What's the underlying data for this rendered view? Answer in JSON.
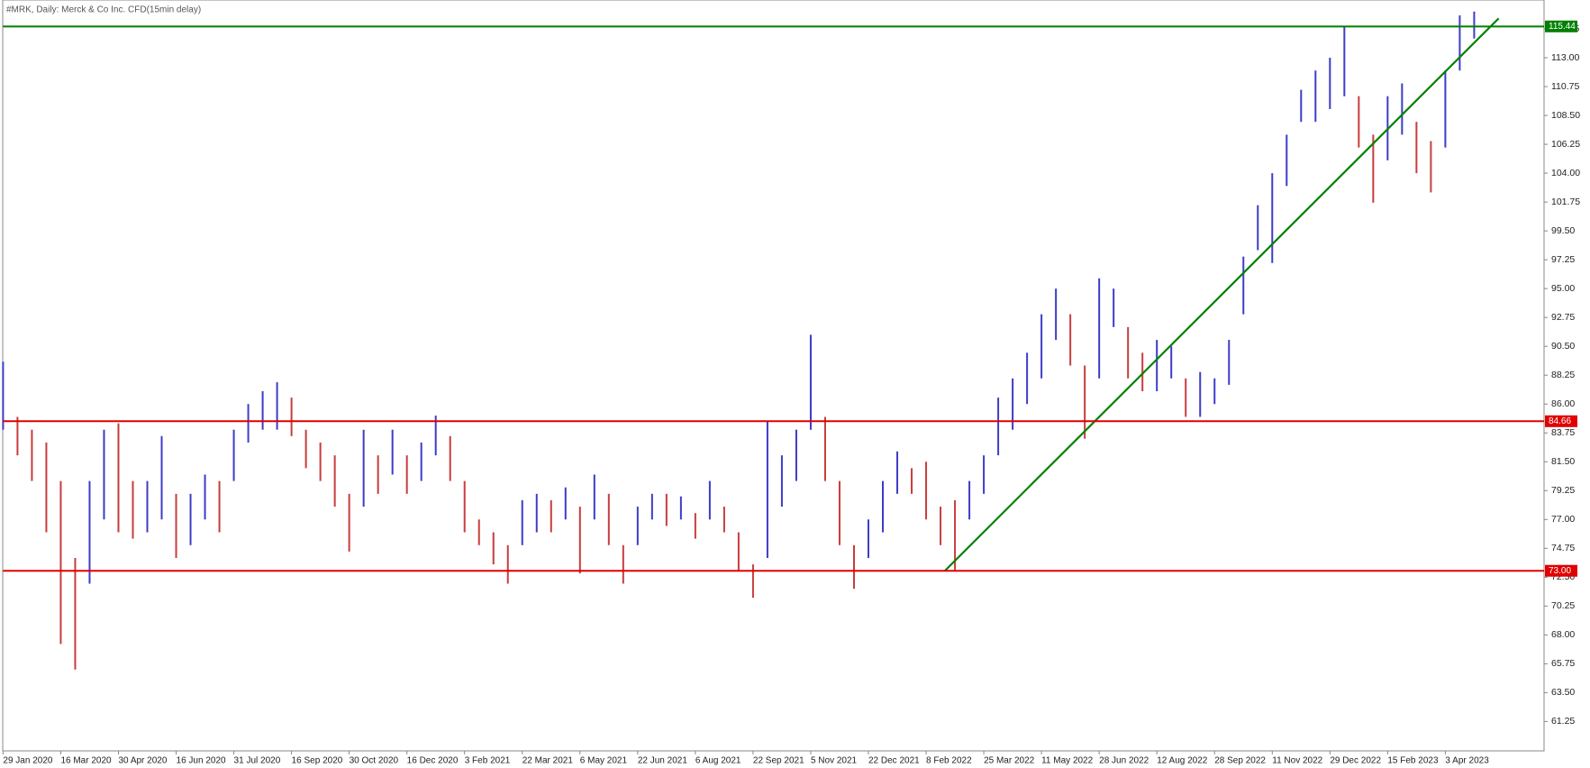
{
  "chart_data": {
    "type": "hilo",
    "title": "#MRK, Daily:  Merck & Co Inc. CFD(15min delay)",
    "categories": [
      "29 Jan 2020",
      null,
      null,
      null,
      "16 Mar 2020",
      null,
      null,
      null,
      "30 Apr 2020",
      null,
      null,
      null,
      "16 Jun 2020",
      null,
      null,
      null,
      "31 Jul 2020",
      null,
      null,
      null,
      "16 Sep 2020",
      null,
      null,
      null,
      "30 Oct 2020",
      null,
      null,
      null,
      "16 Dec 2020",
      null,
      null,
      null,
      "3 Feb 2021",
      null,
      null,
      null,
      "22 Mar 2021",
      null,
      null,
      null,
      "6 May 2021",
      null,
      null,
      null,
      "22 Jun 2021",
      null,
      null,
      null,
      "6 Aug 2021",
      null,
      null,
      null,
      "22 Sep 2021",
      null,
      null,
      null,
      "5 Nov 2021",
      null,
      null,
      null,
      "22 Dec 2021",
      null,
      null,
      null,
      "8 Feb 2022",
      null,
      null,
      null,
      "25 Mar 2022",
      null,
      null,
      null,
      "11 May 2022",
      null,
      null,
      null,
      "28 Jun 2022",
      null,
      null,
      null,
      "12 Aug 2022",
      null,
      null,
      null,
      "28 Sep 2022",
      null,
      null,
      null,
      "11 Nov 2022",
      null,
      null,
      null,
      "29 Dec 2022",
      null,
      null,
      null,
      "15 Feb 2023",
      null,
      null,
      null,
      "3 Apr 2023",
      null,
      null
    ],
    "high": [
      89.3,
      85,
      84,
      83,
      80,
      74,
      80,
      84,
      84.5,
      80,
      80,
      83.5,
      79,
      79,
      80.5,
      80,
      84,
      86,
      87,
      87.7,
      86.5,
      84,
      83,
      82,
      79,
      84,
      82,
      84,
      82,
      83,
      85.1,
      83.5,
      80,
      77,
      76,
      75,
      78.5,
      79,
      78.5,
      79.5,
      78,
      80.5,
      79,
      75,
      78,
      79,
      79,
      78.8,
      77.5,
      80,
      78,
      76,
      73.5,
      84.7,
      82,
      84,
      91.4,
      85,
      80,
      75,
      77,
      80,
      82.3,
      81,
      81.5,
      78,
      78.5,
      80,
      82,
      86.5,
      88,
      90,
      93,
      95,
      93,
      89,
      95.8,
      95,
      92,
      90,
      91,
      90.5,
      88,
      88.5,
      88,
      91,
      97.5,
      101.5,
      104,
      107,
      110.5,
      112,
      113,
      115.4,
      110,
      107,
      110,
      111,
      108,
      106.5,
      112,
      116.3,
      116.6
    ],
    "low": [
      84,
      82,
      80,
      76,
      67.3,
      65.3,
      72,
      77,
      76,
      75.5,
      76,
      77,
      74,
      75,
      77,
      76,
      80,
      83,
      84,
      84,
      83.5,
      81,
      80,
      78,
      74.5,
      78,
      79,
      80.5,
      79,
      80,
      82,
      80,
      76,
      75,
      73.5,
      72,
      75,
      76,
      76,
      77,
      72.8,
      77,
      75,
      72,
      75,
      77,
      76.5,
      77,
      75.5,
      77,
      76,
      73,
      70.9,
      74,
      78,
      80,
      84,
      80,
      75,
      71.6,
      74,
      76,
      79,
      79,
      77,
      75,
      73,
      77,
      79,
      82,
      84,
      86,
      88,
      91,
      89,
      83.3,
      88,
      92,
      88,
      87,
      87,
      88,
      85,
      85,
      86,
      87.5,
      93,
      98,
      97,
      103,
      108,
      108,
      109,
      110,
      106,
      101.7,
      105,
      107,
      104,
      102.5,
      106,
      112,
      114.5
    ],
    "up_color": "#3c3cc8",
    "down_color": "#c83c3c",
    "ylim": [
      58.96,
      117.5
    ],
    "yticks": [
      {
        "value": 61.25,
        "label": "61.25"
      },
      {
        "value": 63.5,
        "label": "63.50"
      },
      {
        "value": 65.75,
        "label": "65.75"
      },
      {
        "value": 68,
        "label": "68.00"
      },
      {
        "value": 70.25,
        "label": "70.25"
      },
      {
        "value": 72.5,
        "label": "72.50"
      },
      {
        "value": 74.75,
        "label": "74.75"
      },
      {
        "value": 77,
        "label": "77.00"
      },
      {
        "value": 79.25,
        "label": "79.25"
      },
      {
        "value": 81.5,
        "label": "81.50"
      },
      {
        "value": 83.75,
        "label": "83.75"
      },
      {
        "value": 86,
        "label": "86.00"
      },
      {
        "value": 88.25,
        "label": "88.25"
      },
      {
        "value": 90.5,
        "label": "90.50"
      },
      {
        "value": 92.75,
        "label": "92.75"
      },
      {
        "value": 95,
        "label": "95.00"
      },
      {
        "value": 97.25,
        "label": "97.25"
      },
      {
        "value": 99.5,
        "label": "99.50"
      },
      {
        "value": 101.75,
        "label": "101.75"
      },
      {
        "value": 104,
        "label": "104.00"
      },
      {
        "value": 106.25,
        "label": "106.25"
      },
      {
        "value": 108.5,
        "label": "108.50"
      },
      {
        "value": 110.75,
        "label": "110.75"
      },
      {
        "value": 113,
        "label": "113.00"
      },
      {
        "value": 115.25,
        "label": "115.25"
      }
    ],
    "hlines": [
      {
        "level": 115.44,
        "color": "#008000"
      },
      {
        "level": 84.66,
        "color": "#e00000"
      },
      {
        "level": {
          "value": 73,
          "label": "73.00"
        },
        "color": "#e00000"
      }
    ],
    "trendline": {
      "x": [
        65.3,
        103.7
      ],
      "values": [
        73,
        116.07
      ],
      "color": "#008000"
    },
    "grid": false
  }
}
